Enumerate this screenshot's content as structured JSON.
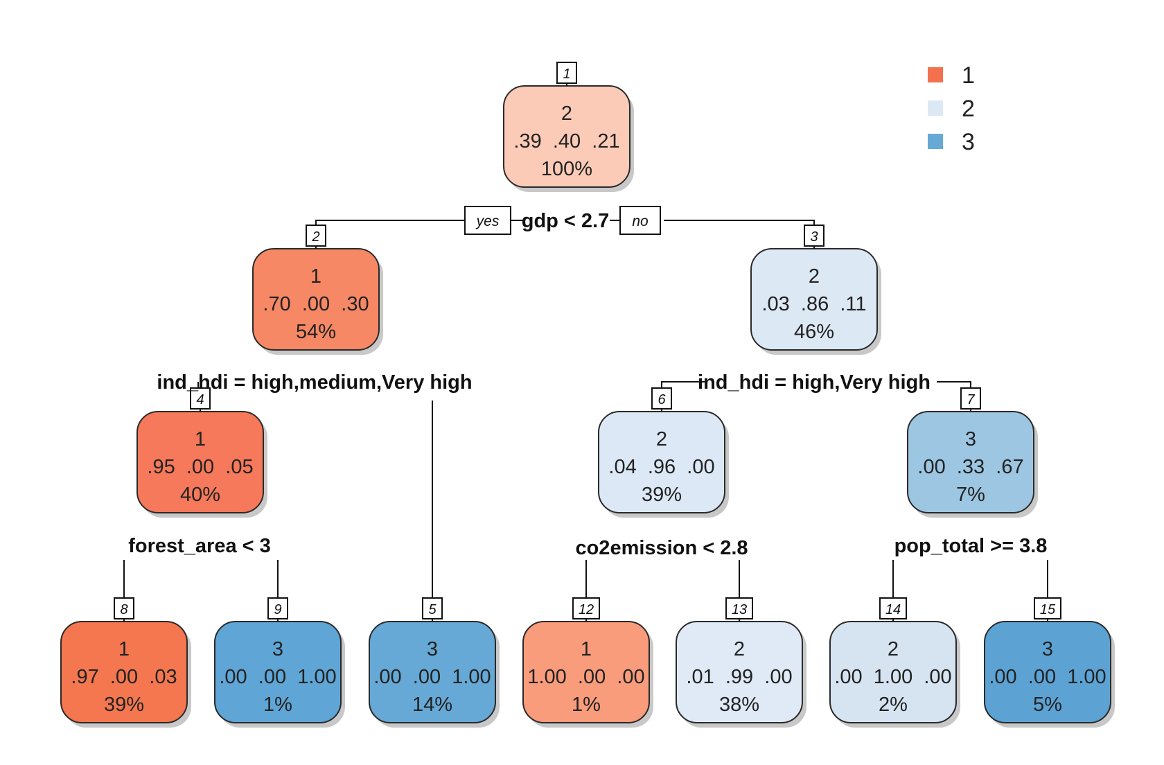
{
  "legend": [
    {
      "label": "1",
      "color": "#F4714F"
    },
    {
      "label": "2",
      "color": "#DCE8F4"
    },
    {
      "label": "3",
      "color": "#66A9D6"
    }
  ],
  "nodes": [
    {
      "id": "1",
      "class": "2",
      "probs": ".39  .40  .21",
      "pct": "100%",
      "fill": "#FBCBB7"
    },
    {
      "id": "2",
      "class": "1",
      "probs": ".70  .00  .30",
      "pct": "54%",
      "fill": "#F68865"
    },
    {
      "id": "3",
      "class": "2",
      "probs": ".03  .86  .11",
      "pct": "46%",
      "fill": "#DDE8F5"
    },
    {
      "id": "4",
      "class": "1",
      "probs": ".95  .00  .05",
      "pct": "40%",
      "fill": "#F5795A"
    },
    {
      "id": "5",
      "class": "3",
      "probs": ".00  .00  1.00",
      "pct": "14%",
      "fill": "#66A9D6"
    },
    {
      "id": "6",
      "class": "2",
      "probs": ".04  .96  .00",
      "pct": "39%",
      "fill": "#DCE8F5"
    },
    {
      "id": "7",
      "class": "3",
      "probs": ".00  .33  .67",
      "pct": "7%",
      "fill": "#9CC6E1"
    },
    {
      "id": "8",
      "class": "1",
      "probs": ".97  .00  .03",
      "pct": "39%",
      "fill": "#F4774F"
    },
    {
      "id": "9",
      "class": "3",
      "probs": ".00  .00  1.00",
      "pct": "1%",
      "fill": "#5FA5D5"
    },
    {
      "id": "12",
      "class": "1",
      "probs": "1.00  .00  .00",
      "pct": "1%",
      "fill": "#F89C7C"
    },
    {
      "id": "13",
      "class": "2",
      "probs": ".01  .99  .00",
      "pct": "38%",
      "fill": "#DFEAF6"
    },
    {
      "id": "14",
      "class": "2",
      "probs": ".00  1.00  .00",
      "pct": "2%",
      "fill": "#D6E4F2"
    },
    {
      "id": "15",
      "class": "3",
      "probs": ".00  .00  1.00",
      "pct": "5%",
      "fill": "#5CA3D4"
    }
  ],
  "splits": [
    {
      "node": "1",
      "label": "gdp < 2.7"
    },
    {
      "node": "2",
      "label": "ind_hdi = high,medium,Very high"
    },
    {
      "node": "3",
      "label": "ind_hdi = high,Very high"
    },
    {
      "node": "4",
      "label": "forest_area < 3"
    },
    {
      "node": "6",
      "label": "co2emission < 2.8"
    },
    {
      "node": "7",
      "label": "pop_total >= 3.8"
    }
  ],
  "branch_labels": {
    "yes": "yes",
    "no": "no"
  }
}
